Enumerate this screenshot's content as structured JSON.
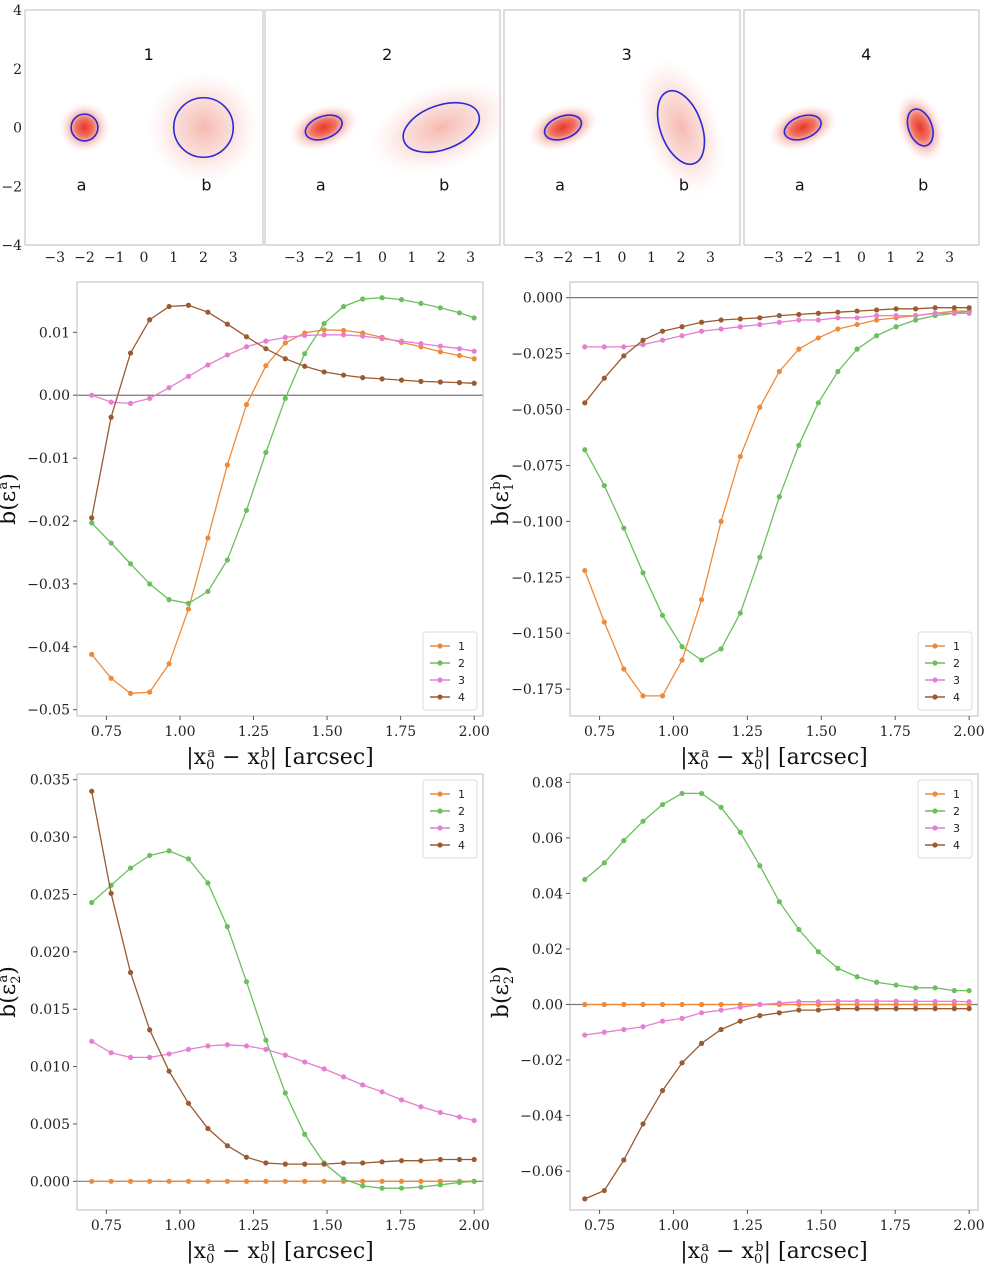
{
  "colors": {
    "1": "#ee8a3a",
    "2": "#6cbf5e",
    "3": "#e57fd0",
    "4": "#9a5a32",
    "ellipse": "#2a2ad8",
    "blob": "#e8362a"
  },
  "image_panels": {
    "xticks": [
      "−3",
      "−2",
      "−1",
      "0",
      "1",
      "2",
      "3"
    ],
    "yticks": [
      "4",
      "2",
      "0",
      "−2",
      "−4"
    ],
    "panels": [
      {
        "title": "1",
        "labels": [
          "a",
          "b"
        ],
        "a": {
          "cx": -2,
          "cy": 0,
          "sigma": 0.55,
          "ell": {
            "rx": 0.45,
            "ry": 0.45,
            "angle": 0
          }
        },
        "b": {
          "cx": 2,
          "cy": 0,
          "sigma": 1.0,
          "ell": {
            "rx": 1.0,
            "ry": 1.0,
            "angle": 0
          }
        }
      },
      {
        "title": "2",
        "labels": [
          "a",
          "b"
        ],
        "a": {
          "cx": -2,
          "cy": 0,
          "sigma": 0.55,
          "ell": {
            "rx": 0.65,
            "ry": 0.38,
            "angle": 20
          }
        },
        "b": {
          "cx": 2,
          "cy": 0,
          "sigma": 1.0,
          "ell": {
            "rx": 1.35,
            "ry": 0.75,
            "angle": 20
          }
        }
      },
      {
        "title": "3",
        "labels": [
          "a",
          "b"
        ],
        "a": {
          "cx": -2,
          "cy": 0,
          "sigma": 0.55,
          "ell": {
            "rx": 0.65,
            "ry": 0.38,
            "angle": 20
          }
        },
        "b": {
          "cx": 2,
          "cy": 0,
          "sigma": 1.0,
          "ell": {
            "rx": 0.7,
            "ry": 1.3,
            "angle": 20
          }
        }
      },
      {
        "title": "4",
        "labels": [
          "a",
          "b"
        ],
        "a": {
          "cx": -2,
          "cy": 0,
          "sigma": 0.55,
          "ell": {
            "rx": 0.65,
            "ry": 0.38,
            "angle": 20
          }
        },
        "b": {
          "cx": 2,
          "cy": 0,
          "sigma": 0.55,
          "ell": {
            "rx": 0.4,
            "ry": 0.65,
            "angle": 20
          }
        }
      }
    ]
  },
  "chart_data": [
    {
      "id": "e1a",
      "type": "line",
      "ylabel": "b(ε1a)",
      "ylabel_sub": "1",
      "ylabel_sup": "a",
      "xlabel": "|x0a − x0b| [arcsec]",
      "xlim": [
        0.65,
        2.03
      ],
      "ylim": [
        -0.051,
        0.018
      ],
      "xticks": [
        0.75,
        1.0,
        1.25,
        1.5,
        1.75,
        2.0
      ],
      "xtick_labels": [
        "0.75",
        "1.00",
        "1.25",
        "1.50",
        "1.75",
        "2.00"
      ],
      "yticks": [
        -0.05,
        -0.04,
        -0.03,
        -0.02,
        -0.01,
        0.0,
        0.01
      ],
      "ytick_labels": [
        "−0.05",
        "−0.04",
        "−0.03",
        "−0.02",
        "−0.01",
        "0.00",
        "0.01"
      ],
      "hline": 0.0,
      "legend": "lower-right",
      "x": [
        0.7,
        0.766,
        0.832,
        0.897,
        0.963,
        1.029,
        1.095,
        1.161,
        1.226,
        1.292,
        1.358,
        1.424,
        1.49,
        1.556,
        1.621,
        1.687,
        1.753,
        1.819,
        1.885,
        1.95,
        2.0
      ],
      "series": [
        {
          "name": "1",
          "values": [
            -0.0412,
            -0.045,
            -0.0474,
            -0.0472,
            -0.0427,
            -0.034,
            -0.0227,
            -0.0111,
            -0.0015,
            0.0047,
            0.0083,
            0.0099,
            0.0104,
            0.0103,
            0.0099,
            0.0092,
            0.0084,
            0.0077,
            0.0069,
            0.0063,
            0.0058
          ]
        },
        {
          "name": "2",
          "values": [
            -0.0203,
            -0.0235,
            -0.0268,
            -0.03,
            -0.0325,
            -0.0331,
            -0.0312,
            -0.0262,
            -0.0183,
            -0.0091,
            -0.0005,
            0.0066,
            0.0114,
            0.0141,
            0.0153,
            0.0155,
            0.0152,
            0.0146,
            0.0139,
            0.0131,
            0.0123
          ]
        },
        {
          "name": "3",
          "values": [
            0.0,
            -0.0011,
            -0.0013,
            -0.0005,
            0.0012,
            0.003,
            0.0048,
            0.0064,
            0.0077,
            0.0086,
            0.0092,
            0.0095,
            0.0096,
            0.0096,
            0.0094,
            0.009,
            0.0086,
            0.0082,
            0.0078,
            0.0074,
            0.007
          ]
        },
        {
          "name": "4",
          "values": [
            -0.0195,
            -0.0035,
            0.0067,
            0.012,
            0.0141,
            0.0143,
            0.0132,
            0.0113,
            0.0093,
            0.0074,
            0.0058,
            0.0046,
            0.0037,
            0.0032,
            0.0028,
            0.0026,
            0.0024,
            0.0022,
            0.0021,
            0.002,
            0.0019
          ]
        }
      ]
    },
    {
      "id": "e1b",
      "type": "line",
      "ylabel": "b(ε1b)",
      "ylabel_sub": "1",
      "ylabel_sup": "b",
      "xlabel": "|x0a − x0b| [arcsec]",
      "xlim": [
        0.65,
        2.03
      ],
      "ylim": [
        -0.187,
        0.007
      ],
      "xticks": [
        0.75,
        1.0,
        1.25,
        1.5,
        1.75,
        2.0
      ],
      "xtick_labels": [
        "0.75",
        "1.00",
        "1.25",
        "1.50",
        "1.75",
        "2.00"
      ],
      "yticks": [
        -0.175,
        -0.15,
        -0.125,
        -0.1,
        -0.075,
        -0.05,
        -0.025,
        0.0
      ],
      "ytick_labels": [
        "−0.175",
        "−0.150",
        "−0.125",
        "−0.100",
        "−0.075",
        "−0.050",
        "−0.025",
        "0.000"
      ],
      "hline": 0.0,
      "legend": "lower-right",
      "x": [
        0.7,
        0.766,
        0.832,
        0.897,
        0.963,
        1.029,
        1.095,
        1.161,
        1.226,
        1.292,
        1.358,
        1.424,
        1.49,
        1.556,
        1.621,
        1.687,
        1.753,
        1.819,
        1.885,
        1.95,
        2.0
      ],
      "series": [
        {
          "name": "1",
          "values": [
            -0.122,
            -0.145,
            -0.166,
            -0.178,
            -0.178,
            -0.162,
            -0.135,
            -0.1,
            -0.071,
            -0.049,
            -0.033,
            -0.023,
            -0.018,
            -0.014,
            -0.012,
            -0.01,
            -0.009,
            -0.008,
            -0.007,
            -0.006,
            -0.006
          ]
        },
        {
          "name": "2",
          "values": [
            -0.068,
            -0.084,
            -0.103,
            -0.123,
            -0.142,
            -0.156,
            -0.162,
            -0.157,
            -0.141,
            -0.116,
            -0.089,
            -0.066,
            -0.047,
            -0.033,
            -0.023,
            -0.017,
            -0.013,
            -0.01,
            -0.008,
            -0.007,
            -0.006
          ]
        },
        {
          "name": "3",
          "values": [
            -0.022,
            -0.022,
            -0.022,
            -0.021,
            -0.019,
            -0.017,
            -0.015,
            -0.014,
            -0.013,
            -0.012,
            -0.011,
            -0.01,
            -0.01,
            -0.009,
            -0.009,
            -0.008,
            -0.008,
            -0.008,
            -0.007,
            -0.007,
            -0.007
          ]
        },
        {
          "name": "4",
          "values": [
            -0.047,
            -0.036,
            -0.026,
            -0.019,
            -0.015,
            -0.013,
            -0.011,
            -0.01,
            -0.0095,
            -0.009,
            -0.008,
            -0.0075,
            -0.007,
            -0.0065,
            -0.006,
            -0.0055,
            -0.005,
            -0.005,
            -0.0045,
            -0.0045,
            -0.0045
          ]
        }
      ]
    },
    {
      "id": "e2a",
      "type": "line",
      "ylabel": "b(ε2a)",
      "ylabel_sub": "2",
      "ylabel_sup": "a",
      "xlabel": "|x0a − x0b| [arcsec]",
      "xlim": [
        0.65,
        2.03
      ],
      "ylim": [
        -0.0025,
        0.0355
      ],
      "xticks": [
        0.75,
        1.0,
        1.25,
        1.5,
        1.75,
        2.0
      ],
      "xtick_labels": [
        "0.75",
        "1.00",
        "1.25",
        "1.50",
        "1.75",
        "2.00"
      ],
      "yticks": [
        0.0,
        0.005,
        0.01,
        0.015,
        0.02,
        0.025,
        0.03,
        0.035
      ],
      "ytick_labels": [
        "0.000",
        "0.005",
        "0.010",
        "0.015",
        "0.020",
        "0.025",
        "0.030",
        "0.035"
      ],
      "hline": 0.0,
      "legend": "top-right",
      "x": [
        0.7,
        0.766,
        0.832,
        0.897,
        0.963,
        1.029,
        1.095,
        1.161,
        1.226,
        1.292,
        1.358,
        1.424,
        1.49,
        1.556,
        1.621,
        1.687,
        1.753,
        1.819,
        1.885,
        1.95,
        2.0
      ],
      "series": [
        {
          "name": "1",
          "values": [
            0,
            0,
            0,
            0,
            0,
            0,
            0,
            0,
            0,
            0,
            0,
            0,
            0,
            0,
            0,
            0,
            0,
            0,
            0,
            0,
            0
          ]
        },
        {
          "name": "2",
          "values": [
            0.0243,
            0.0258,
            0.0273,
            0.0284,
            0.0288,
            0.0281,
            0.026,
            0.0222,
            0.0174,
            0.0123,
            0.0077,
            0.0041,
            0.0016,
            0.0002,
            -0.0004,
            -0.0006,
            -0.0006,
            -0.0005,
            -0.0003,
            -0.0001,
            0.0
          ]
        },
        {
          "name": "3",
          "values": [
            0.0122,
            0.0112,
            0.0108,
            0.0108,
            0.0111,
            0.0115,
            0.0118,
            0.0119,
            0.0118,
            0.0115,
            0.011,
            0.0104,
            0.0098,
            0.0091,
            0.0084,
            0.0078,
            0.0071,
            0.0065,
            0.006,
            0.0056,
            0.0053
          ]
        },
        {
          "name": "4",
          "values": [
            0.034,
            0.0251,
            0.0182,
            0.0132,
            0.0096,
            0.0068,
            0.0046,
            0.0031,
            0.0021,
            0.0016,
            0.0015,
            0.0015,
            0.0015,
            0.0016,
            0.0016,
            0.0017,
            0.0018,
            0.0018,
            0.0019,
            0.0019,
            0.0019
          ]
        }
      ]
    },
    {
      "id": "e2b",
      "type": "line",
      "ylabel": "b(ε2b)",
      "ylabel_sub": "2",
      "ylabel_sup": "b",
      "xlabel": "|x0a − x0b| [arcsec]",
      "xlim": [
        0.65,
        2.03
      ],
      "ylim": [
        -0.074,
        0.083
      ],
      "xticks": [
        0.75,
        1.0,
        1.25,
        1.5,
        1.75,
        2.0
      ],
      "xtick_labels": [
        "0.75",
        "1.00",
        "1.25",
        "1.50",
        "1.75",
        "2.00"
      ],
      "yticks": [
        -0.06,
        -0.04,
        -0.02,
        0.0,
        0.02,
        0.04,
        0.06,
        0.08
      ],
      "ytick_labels": [
        "−0.06",
        "−0.04",
        "−0.02",
        "0.00",
        "0.02",
        "0.04",
        "0.06",
        "0.08"
      ],
      "hline": 0.0,
      "legend": "top-right",
      "x": [
        0.7,
        0.766,
        0.832,
        0.897,
        0.963,
        1.029,
        1.095,
        1.161,
        1.226,
        1.292,
        1.358,
        1.424,
        1.49,
        1.556,
        1.621,
        1.687,
        1.753,
        1.819,
        1.885,
        1.95,
        2.0
      ],
      "series": [
        {
          "name": "1",
          "values": [
            0,
            0,
            0,
            0,
            0,
            0,
            0,
            0,
            0,
            0,
            0,
            0,
            0,
            0,
            0,
            0,
            0,
            0,
            0,
            0,
            0
          ]
        },
        {
          "name": "2",
          "values": [
            0.045,
            0.051,
            0.059,
            0.066,
            0.072,
            0.076,
            0.076,
            0.071,
            0.062,
            0.05,
            0.037,
            0.027,
            0.019,
            0.013,
            0.01,
            0.008,
            0.007,
            0.006,
            0.006,
            0.005,
            0.005
          ]
        },
        {
          "name": "3",
          "values": [
            -0.011,
            -0.01,
            -0.009,
            -0.008,
            -0.006,
            -0.005,
            -0.003,
            -0.002,
            -0.001,
            0.0,
            0.0005,
            0.001,
            0.001,
            0.0012,
            0.0012,
            0.0012,
            0.0012,
            0.0011,
            0.0011,
            0.0011,
            0.001
          ]
        },
        {
          "name": "4",
          "values": [
            -0.07,
            -0.067,
            -0.056,
            -0.043,
            -0.031,
            -0.021,
            -0.014,
            -0.009,
            -0.006,
            -0.004,
            -0.003,
            -0.002,
            -0.002,
            -0.0015,
            -0.0015,
            -0.0015,
            -0.0015,
            -0.0015,
            -0.0015,
            -0.0015,
            -0.0015
          ]
        }
      ]
    }
  ]
}
